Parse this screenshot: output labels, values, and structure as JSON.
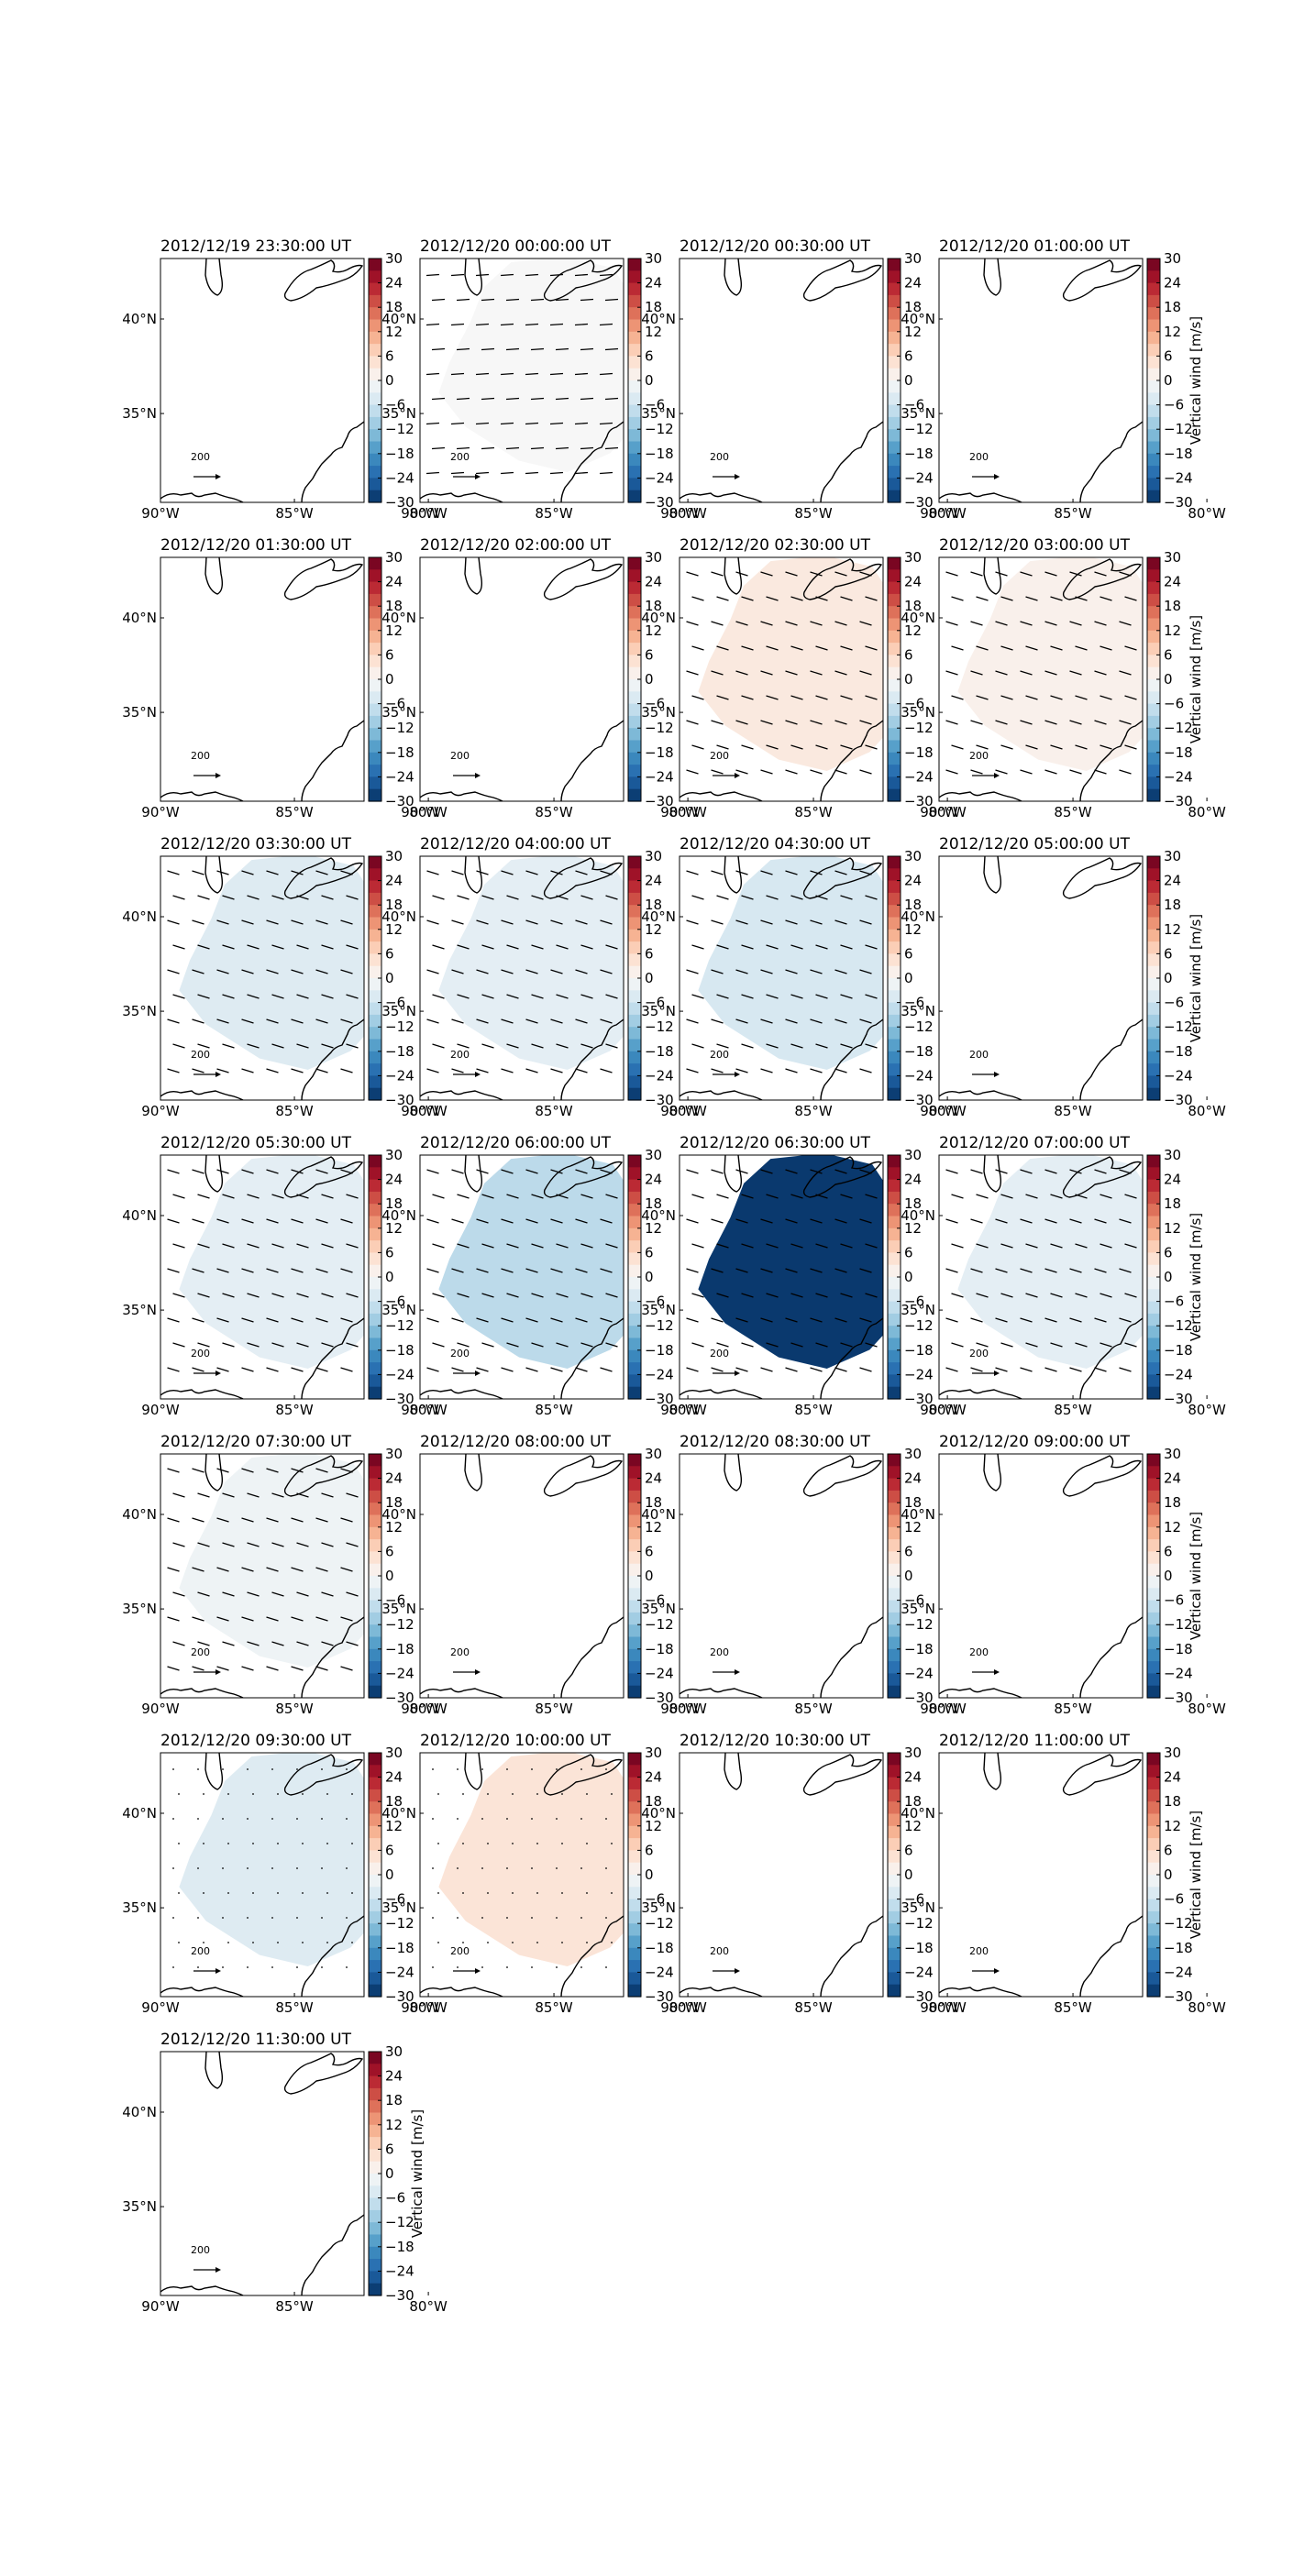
{
  "figure": {
    "colorbar_label": "Vertical wind [m/s]"
  },
  "chart_data": {
    "type": "heatmap",
    "variable": "Vertical wind",
    "units": "m/s",
    "colormap": "RdBu_r",
    "color_range": [
      -30,
      30
    ],
    "colorbar_ticks": [
      "30",
      "24",
      "18",
      "12",
      "6",
      "0",
      "−6",
      "−12",
      "−18",
      "−24",
      "−30"
    ],
    "lon_ticks": [
      "90°W",
      "85°W",
      "80°W"
    ],
    "lat_ticks": [
      "40°N",
      "35°N"
    ],
    "lon_range": [
      -90,
      -82.4
    ],
    "lat_range": [
      30.3,
      43.2
    ],
    "reference_arrow_label": "200",
    "panels": [
      {
        "title": "2012/12/19 23:30:00 UT",
        "value": null,
        "arrows": "none",
        "colorbar_label": false
      },
      {
        "title": "2012/12/20 00:00:00 UT",
        "value": 0,
        "arrows": "east",
        "colorbar_label": false
      },
      {
        "title": "2012/12/20 00:30:00 UT",
        "value": null,
        "arrows": "none",
        "colorbar_label": false
      },
      {
        "title": "2012/12/20 01:00:00 UT",
        "value": null,
        "arrows": "none",
        "colorbar_label": true
      },
      {
        "title": "2012/12/20 01:30:00 UT",
        "value": null,
        "arrows": "none",
        "colorbar_label": false
      },
      {
        "title": "2012/12/20 02:00:00 UT",
        "value": null,
        "arrows": "none",
        "colorbar_label": false
      },
      {
        "title": "2012/12/20 02:30:00 UT",
        "value": 3,
        "arrows": "southeast",
        "colorbar_label": false
      },
      {
        "title": "2012/12/20 03:00:00 UT",
        "value": 1.5,
        "arrows": "southeast",
        "colorbar_label": true
      },
      {
        "title": "2012/12/20 03:30:00 UT",
        "value": -4,
        "arrows": "southeast",
        "colorbar_label": false
      },
      {
        "title": "2012/12/20 04:00:00 UT",
        "value": -3,
        "arrows": "southeast",
        "colorbar_label": false
      },
      {
        "title": "2012/12/20 04:30:00 UT",
        "value": -5,
        "arrows": "southeast",
        "colorbar_label": false
      },
      {
        "title": "2012/12/20 05:00:00 UT",
        "value": null,
        "arrows": "none",
        "colorbar_label": true
      },
      {
        "title": "2012/12/20 05:30:00 UT",
        "value": -3,
        "arrows": "southeast",
        "colorbar_label": false
      },
      {
        "title": "2012/12/20 06:00:00 UT",
        "value": -8,
        "arrows": "southeast",
        "colorbar_label": false
      },
      {
        "title": "2012/12/20 06:30:00 UT",
        "value": -29,
        "arrows": "southeast",
        "colorbar_label": false
      },
      {
        "title": "2012/12/20 07:00:00 UT",
        "value": -3,
        "arrows": "southeast",
        "colorbar_label": true
      },
      {
        "title": "2012/12/20 07:30:00 UT",
        "value": -1.5,
        "arrows": "southeast",
        "colorbar_label": false
      },
      {
        "title": "2012/12/20 08:00:00 UT",
        "value": null,
        "arrows": "none",
        "colorbar_label": false
      },
      {
        "title": "2012/12/20 08:30:00 UT",
        "value": null,
        "arrows": "none",
        "colorbar_label": false
      },
      {
        "title": "2012/12/20 09:00:00 UT",
        "value": null,
        "arrows": "none",
        "colorbar_label": true
      },
      {
        "title": "2012/12/20 09:30:00 UT",
        "value": -4,
        "arrows": "dots",
        "colorbar_label": false
      },
      {
        "title": "2012/12/20 10:00:00 UT",
        "value": 4,
        "arrows": "dots",
        "colorbar_label": false
      },
      {
        "title": "2012/12/20 10:30:00 UT",
        "value": null,
        "arrows": "none",
        "colorbar_label": false
      },
      {
        "title": "2012/12/20 11:00:00 UT",
        "value": null,
        "arrows": "none",
        "colorbar_label": true
      },
      {
        "title": "2012/12/20 11:30:00 UT",
        "value": null,
        "arrows": "none",
        "colorbar_label": true
      }
    ]
  }
}
